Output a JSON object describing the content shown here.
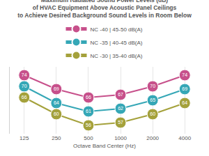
{
  "chart_data": {
    "type": "line",
    "title": "Maximum Radiated Sound Power Levels (dB)\nof HVAC Equipment Above Acoustic Panel Ceilings\nto Achieve Desired Background Sound Levels in Room Below",
    "x_label": "Octave Band Center (Hz)",
    "categories": [
      "125",
      "250",
      "500",
      "1000",
      "2000",
      "4000"
    ],
    "series": [
      {
        "name": "NC -40 | 45-50 dB(A)",
        "color": "#c7508b",
        "values": [
          74,
          69,
          66,
          67,
          70,
          74
        ]
      },
      {
        "name": "NC -35 | 40-45 dB(A)",
        "color": "#35a7b6",
        "values": [
          70,
          64,
          61,
          62,
          65,
          69
        ]
      },
      {
        "name": "NC -30 | 35-40 dB(A)",
        "color": "#a4a13b",
        "values": [
          66,
          60,
          56,
          57,
          60,
          64
        ]
      }
    ],
    "ylim": [
      53,
      77
    ],
    "grid": true,
    "legend": "top",
    "data_labels": true,
    "tick_labels": "x",
    "marker": "circle"
  }
}
